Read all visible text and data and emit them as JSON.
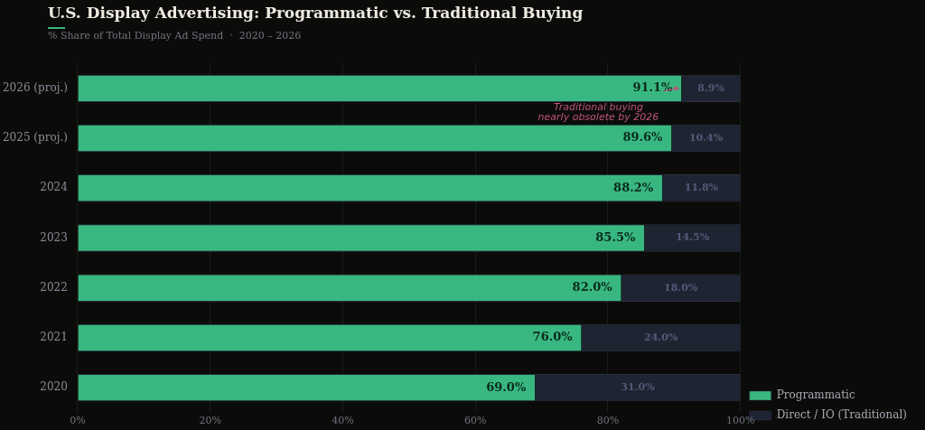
{
  "chart_data": {
    "type": "bar",
    "orientation": "horizontal",
    "stacked": true,
    "title": "U.S. Display Advertising: Programmatic vs. Traditional Buying",
    "subtitle": "% Share of Total Display Ad Spend  ·  2020 – 2026",
    "categories": [
      "2026 (proj.)",
      "2025 (proj.)",
      "2024",
      "2023",
      "2022",
      "2021",
      "2020"
    ],
    "series": [
      {
        "name": "Programmatic",
        "color": "#38b880",
        "values": [
          91.1,
          89.6,
          88.2,
          85.5,
          82.0,
          76.0,
          69.0
        ],
        "value_labels": [
          "91.1%",
          "89.6%",
          "88.2%",
          "85.5%",
          "82.0%",
          "76.0%",
          "69.0%"
        ]
      },
      {
        "name": "Direct / IO (Traditional)",
        "color": "#1f2432",
        "values": [
          8.9,
          10.4,
          11.8,
          14.5,
          18.0,
          24.0,
          31.0
        ],
        "value_labels": [
          "8.9%",
          "10.4%",
          "11.8%",
          "14.5%",
          "18.0%",
          "24.0%",
          "31.0%"
        ]
      }
    ],
    "xlim": [
      0,
      100
    ],
    "xticks": [
      {
        "value": 0,
        "label": "0%"
      },
      {
        "value": 20,
        "label": "20%"
      },
      {
        "value": 40,
        "label": "40%"
      },
      {
        "value": 60,
        "label": "60%"
      },
      {
        "value": 80,
        "label": "80%"
      },
      {
        "value": 100,
        "label": "100%"
      }
    ],
    "grid": "x",
    "legend": "bottom right",
    "annotations": [
      {
        "text": "Traditional buying\nnearly obsolete by 2026",
        "x": 91.1,
        "y": "2026 (proj.)"
      }
    ]
  }
}
